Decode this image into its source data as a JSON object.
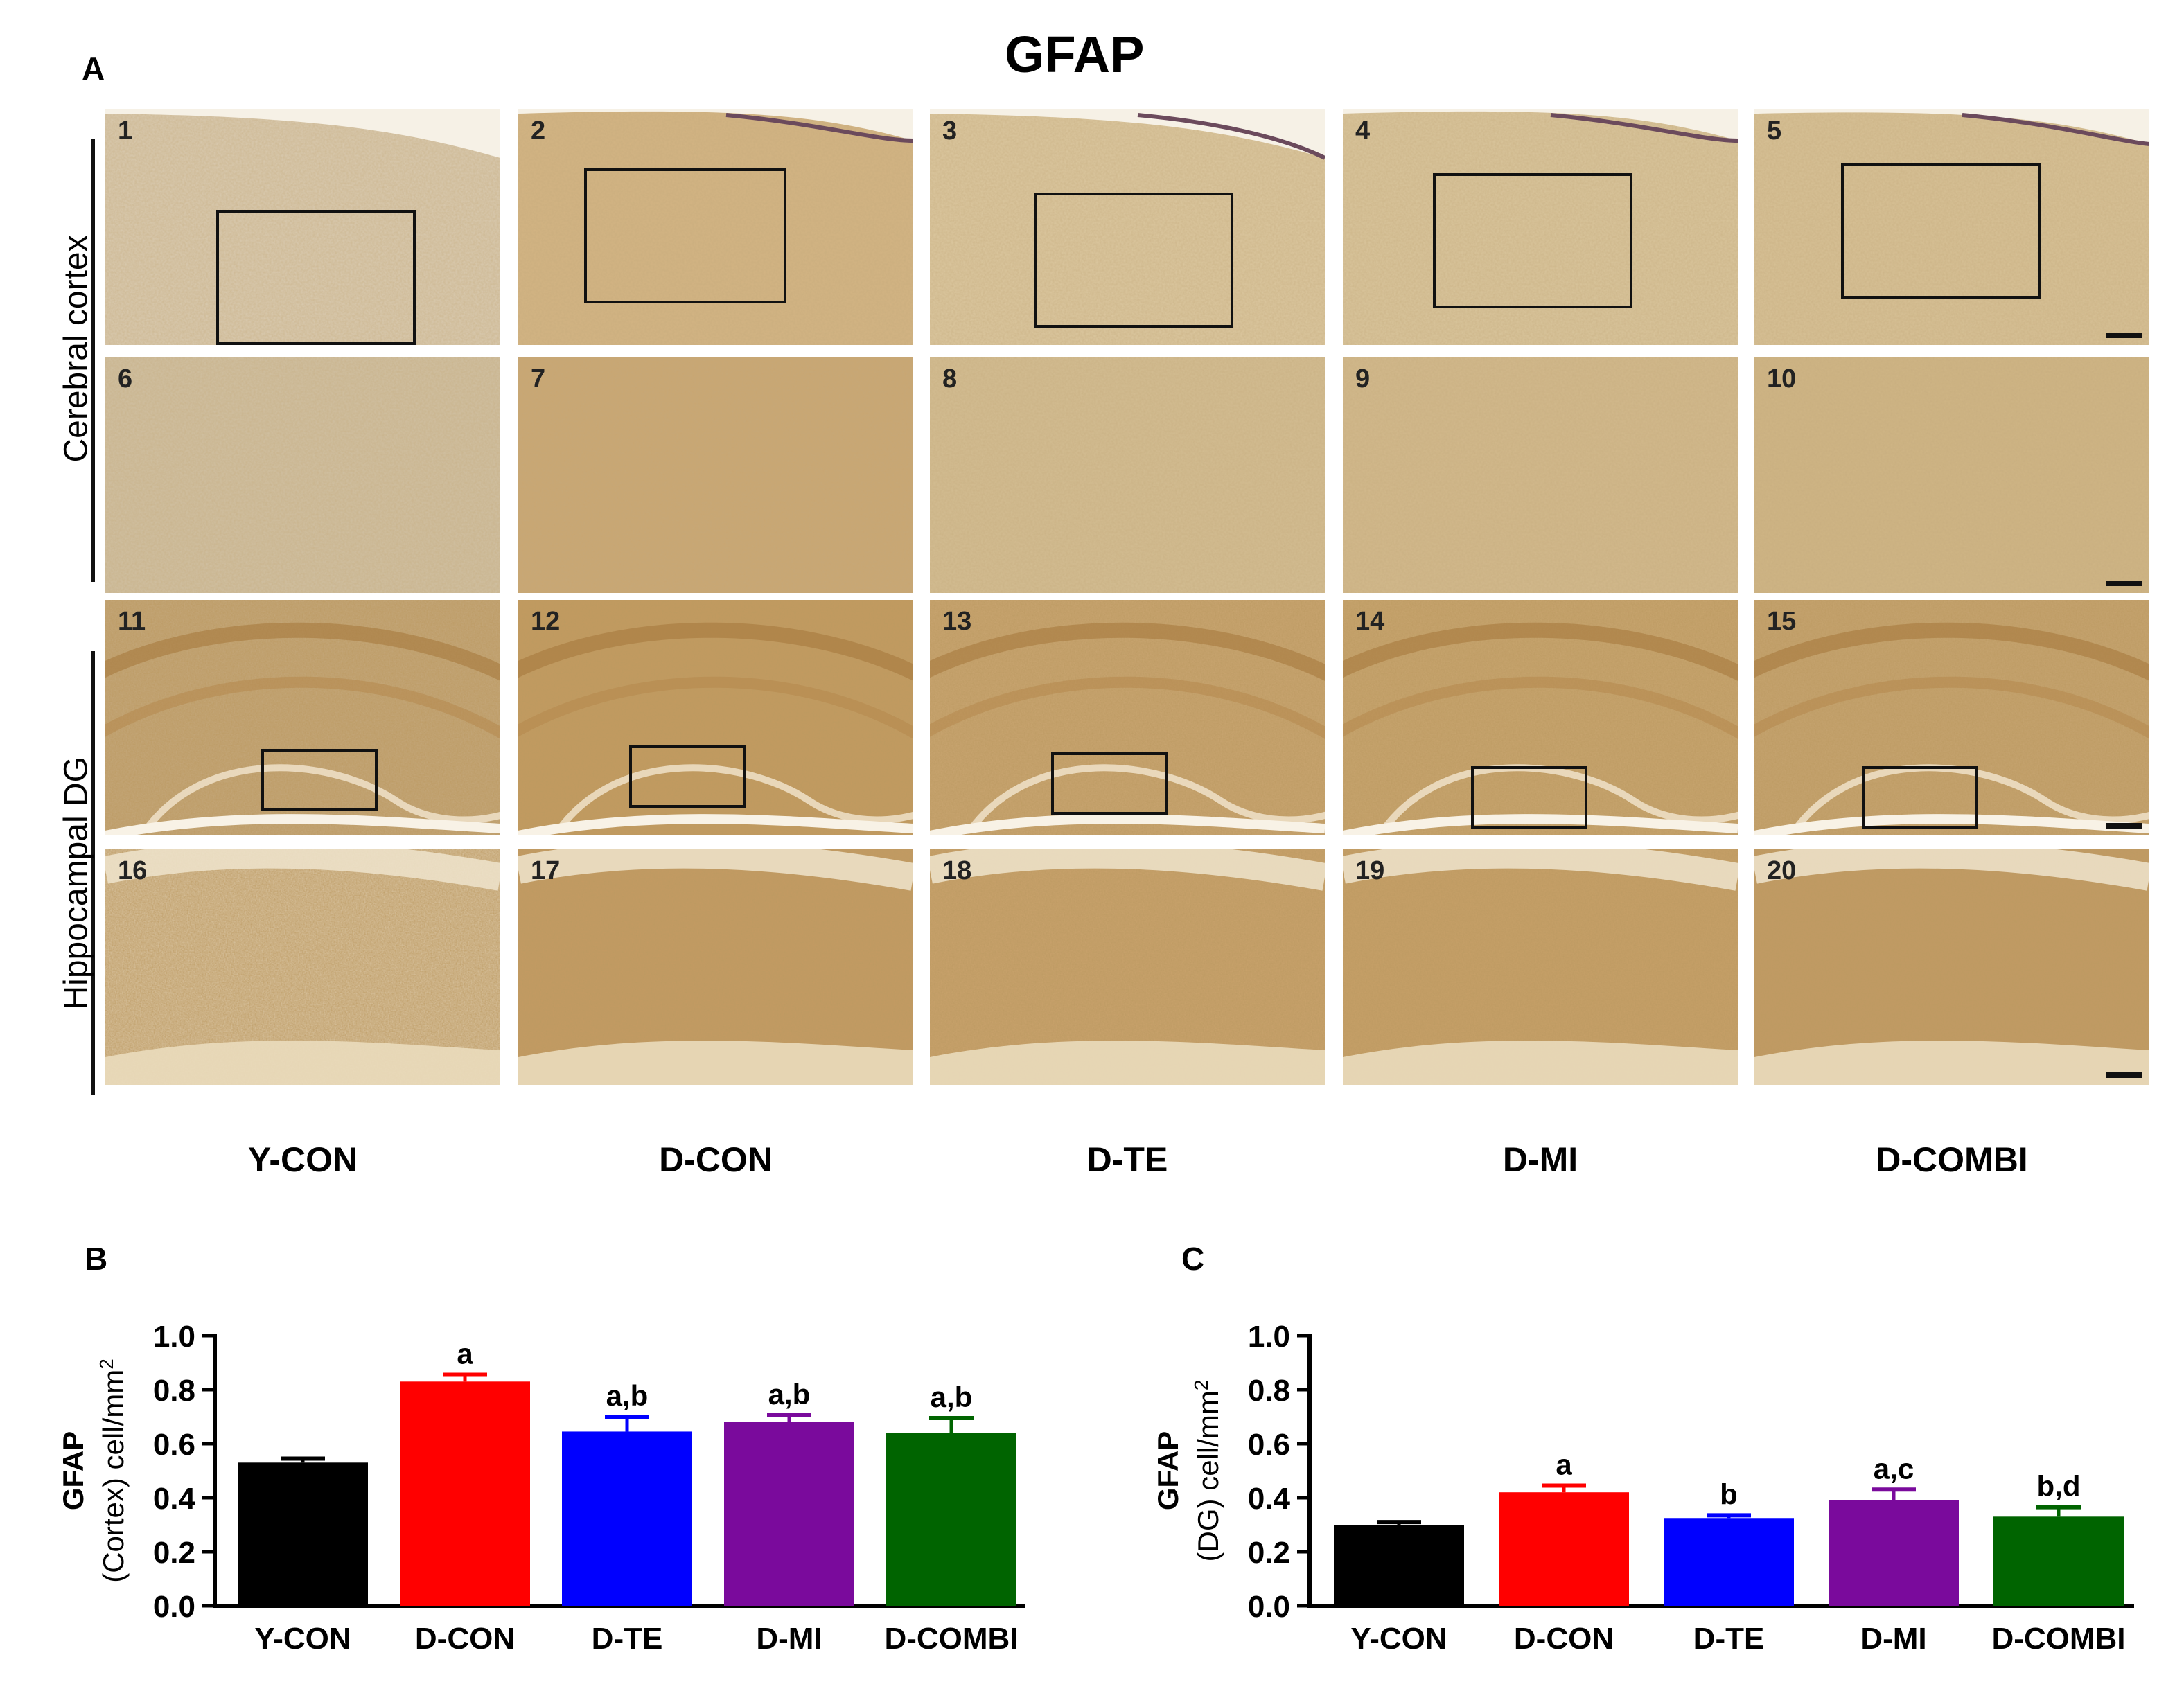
{
  "figure": {
    "title": "GFAP",
    "panel_a_letter": "A",
    "panel_b_letter": "B",
    "panel_c_letter": "C",
    "row_labels": [
      "Cerebral cortex",
      "Hippocampal DG"
    ],
    "groups": [
      "Y-CON",
      "D-CON",
      "D-TE",
      "D-MI",
      "D-COMBI"
    ],
    "tile_numbers": [
      "1",
      "2",
      "3",
      "4",
      "5",
      "6",
      "7",
      "8",
      "9",
      "10",
      "11",
      "12",
      "13",
      "14",
      "15",
      "16",
      "17",
      "18",
      "19",
      "20"
    ]
  },
  "chart_data": [
    {
      "type": "bar",
      "panel": "B",
      "ylabel_line1": "GFAP",
      "ylabel_line2": "(Cortex) cell/mm",
      "ylabel_sup": "2",
      "categories": [
        "Y-CON",
        "D-CON",
        "D-TE",
        "D-MI",
        "D-COMBI"
      ],
      "values": [
        0.53,
        0.83,
        0.645,
        0.68,
        0.64
      ],
      "errors": [
        0.015,
        0.025,
        0.055,
        0.025,
        0.055
      ],
      "significance": [
        "",
        "a",
        "a,b",
        "a,b",
        "a,b"
      ],
      "colors": [
        "#000000",
        "#ff0000",
        "#0000ff",
        "#7a0a9c",
        "#006400"
      ],
      "ylim": [
        0.0,
        1.0
      ],
      "yticks": [
        "0.0",
        "0.2",
        "0.4",
        "0.6",
        "0.8",
        "1.0"
      ],
      "grid": false
    },
    {
      "type": "bar",
      "panel": "C",
      "ylabel_line1": "GFAP",
      "ylabel_line2": "(DG) cell/mm",
      "ylabel_sup": "2",
      "categories": [
        "Y-CON",
        "D-CON",
        "D-TE",
        "D-MI",
        "D-COMBI"
      ],
      "values": [
        0.3,
        0.42,
        0.325,
        0.39,
        0.33
      ],
      "errors": [
        0.01,
        0.025,
        0.01,
        0.04,
        0.035
      ],
      "significance": [
        "",
        "a",
        "b",
        "a,c",
        "b,d"
      ],
      "colors": [
        "#000000",
        "#ff0000",
        "#0000ff",
        "#7a0a9c",
        "#006400"
      ],
      "ylim": [
        0.0,
        1.0
      ],
      "yticks": [
        "0.0",
        "0.2",
        "0.4",
        "0.6",
        "0.8",
        "1.0"
      ],
      "grid": false
    }
  ]
}
